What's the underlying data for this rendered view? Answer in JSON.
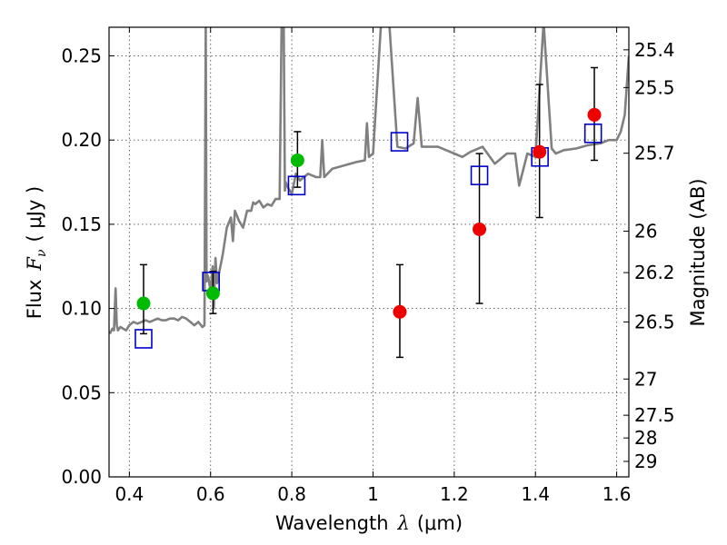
{
  "chart_data": {
    "type": "scatter",
    "xlabel": "Wavelength",
    "xlabel_symbol": "λ",
    "xlabel_unit": "(μm)",
    "ylabel": "Flux",
    "ylabel_symbol": "F",
    "ylabel_sub": "ν",
    "ylabel_unit": "( μJy )",
    "y2label": "Magnitude (AB)",
    "xlim": [
      0.35,
      1.63
    ],
    "ylim": [
      0.0,
      0.267
    ],
    "grid": true,
    "x_ticks": [
      0.4,
      0.6,
      0.8,
      1.0,
      1.2,
      1.4,
      1.6
    ],
    "x_tick_labels": [
      "0.4",
      "0.6",
      "0.8",
      "1",
      "1.2",
      "1.4",
      "1.6"
    ],
    "y_ticks": [
      0.0,
      0.05,
      0.1,
      0.15,
      0.2,
      0.25
    ],
    "y_tick_labels": [
      "0.00",
      "0.05",
      "0.10",
      "0.15",
      "0.20",
      "0.25"
    ],
    "mag_ticks": [
      {
        "label": "25.4",
        "flux": 0.2536
      },
      {
        "label": "25.5",
        "flux": 0.2312
      },
      {
        "label": "25.7",
        "flux": 0.1922
      },
      {
        "label": "26",
        "flux": 0.1459
      },
      {
        "label": "26.2",
        "flux": 0.1213
      },
      {
        "label": "26.5",
        "flux": 0.092
      },
      {
        "label": "27",
        "flux": 0.0581
      },
      {
        "label": "27.5",
        "flux": 0.0366
      },
      {
        "label": "28",
        "flux": 0.0231
      },
      {
        "label": "29",
        "flux": 0.0092
      }
    ],
    "colors": {
      "model": "#808080",
      "synthetic": "#0000cc",
      "detection_green": "#00bb00",
      "detection_red": "#ee0000",
      "errorbar": "#000000",
      "grid": "#555555"
    },
    "series": [
      {
        "name": "model spectrum",
        "style": "line",
        "x": [
          0.352,
          0.358,
          0.362,
          0.366,
          0.369,
          0.372,
          0.378,
          0.385,
          0.392,
          0.4,
          0.41,
          0.42,
          0.43,
          0.44,
          0.45,
          0.46,
          0.47,
          0.48,
          0.49,
          0.5,
          0.51,
          0.52,
          0.53,
          0.54,
          0.55,
          0.56,
          0.57,
          0.58,
          0.585,
          0.588,
          0.59,
          0.592,
          0.595,
          0.6,
          0.605,
          0.608,
          0.612,
          0.616,
          0.62,
          0.63,
          0.64,
          0.65,
          0.655,
          0.66,
          0.665,
          0.67,
          0.68,
          0.69,
          0.7,
          0.705,
          0.71,
          0.72,
          0.73,
          0.74,
          0.75,
          0.76,
          0.77,
          0.775,
          0.78,
          0.783,
          0.785,
          0.79,
          0.8,
          0.81,
          0.82,
          0.84,
          0.86,
          0.87,
          0.875,
          0.88,
          0.9,
          0.93,
          0.96,
          0.98,
          0.985,
          0.99,
          1.0,
          1.02,
          1.04,
          1.06,
          1.08,
          1.1,
          1.11,
          1.12,
          1.13,
          1.16,
          1.18,
          1.2,
          1.22,
          1.24,
          1.27,
          1.3,
          1.33,
          1.35,
          1.36,
          1.38,
          1.4,
          1.42,
          1.44,
          1.45,
          1.47,
          1.5,
          1.53,
          1.56,
          1.58,
          1.6,
          1.61,
          1.62,
          1.63
        ],
        "y": [
          0.085,
          0.088,
          0.087,
          0.112,
          0.09,
          0.087,
          0.089,
          0.088,
          0.087,
          0.09,
          0.092,
          0.091,
          0.092,
          0.093,
          0.092,
          0.093,
          0.094,
          0.093,
          0.093,
          0.094,
          0.094,
          0.093,
          0.095,
          0.094,
          0.092,
          0.09,
          0.092,
          0.089,
          0.09,
          0.27,
          0.116,
          0.12,
          0.118,
          0.11,
          0.125,
          0.1,
          0.13,
          0.115,
          0.12,
          0.132,
          0.148,
          0.154,
          0.14,
          0.158,
          0.155,
          0.152,
          0.148,
          0.158,
          0.158,
          0.163,
          0.162,
          0.164,
          0.16,
          0.162,
          0.161,
          0.165,
          0.165,
          0.27,
          0.27,
          0.17,
          0.175,
          0.172,
          0.168,
          0.18,
          0.176,
          0.18,
          0.178,
          0.178,
          0.2,
          0.178,
          0.183,
          0.185,
          0.187,
          0.188,
          0.21,
          0.19,
          0.192,
          0.27,
          0.27,
          0.196,
          0.195,
          0.198,
          0.225,
          0.196,
          0.196,
          0.196,
          0.194,
          0.192,
          0.19,
          0.193,
          0.196,
          0.186,
          0.192,
          0.192,
          0.173,
          0.192,
          0.19,
          0.27,
          0.195,
          0.192,
          0.194,
          0.195,
          0.197,
          0.198,
          0.2,
          0.2,
          0.205,
          0.215,
          0.25
        ]
      },
      {
        "name": "synthetic photometry",
        "style": "open-square",
        "x": [
          0.435,
          0.601,
          0.812,
          1.065,
          1.262,
          1.411,
          1.542
        ],
        "y": [
          0.082,
          0.116,
          0.173,
          0.199,
          0.179,
          0.19,
          0.204
        ]
      },
      {
        "name": "detections",
        "style": "filled-circle-with-errorbars",
        "points": [
          {
            "x": 0.435,
            "y": 0.103,
            "yerr": [
              0.085,
              0.126
            ],
            "color": "green"
          },
          {
            "x": 0.606,
            "y": 0.109,
            "yerr": [
              0.097,
              0.122
            ],
            "color": "green"
          },
          {
            "x": 0.814,
            "y": 0.188,
            "yerr": [
              0.172,
              0.205
            ],
            "color": "green"
          },
          {
            "x": 1.066,
            "y": 0.098,
            "yerr": [
              0.071,
              0.126
            ],
            "color": "red"
          },
          {
            "x": 1.262,
            "y": 0.147,
            "yerr": [
              0.103,
              0.192
            ],
            "color": "red"
          },
          {
            "x": 1.41,
            "y": 0.193,
            "yerr": [
              0.154,
              0.233
            ],
            "color": "red"
          },
          {
            "x": 1.545,
            "y": 0.215,
            "yerr": [
              0.188,
              0.243
            ],
            "color": "red"
          }
        ]
      }
    ]
  }
}
